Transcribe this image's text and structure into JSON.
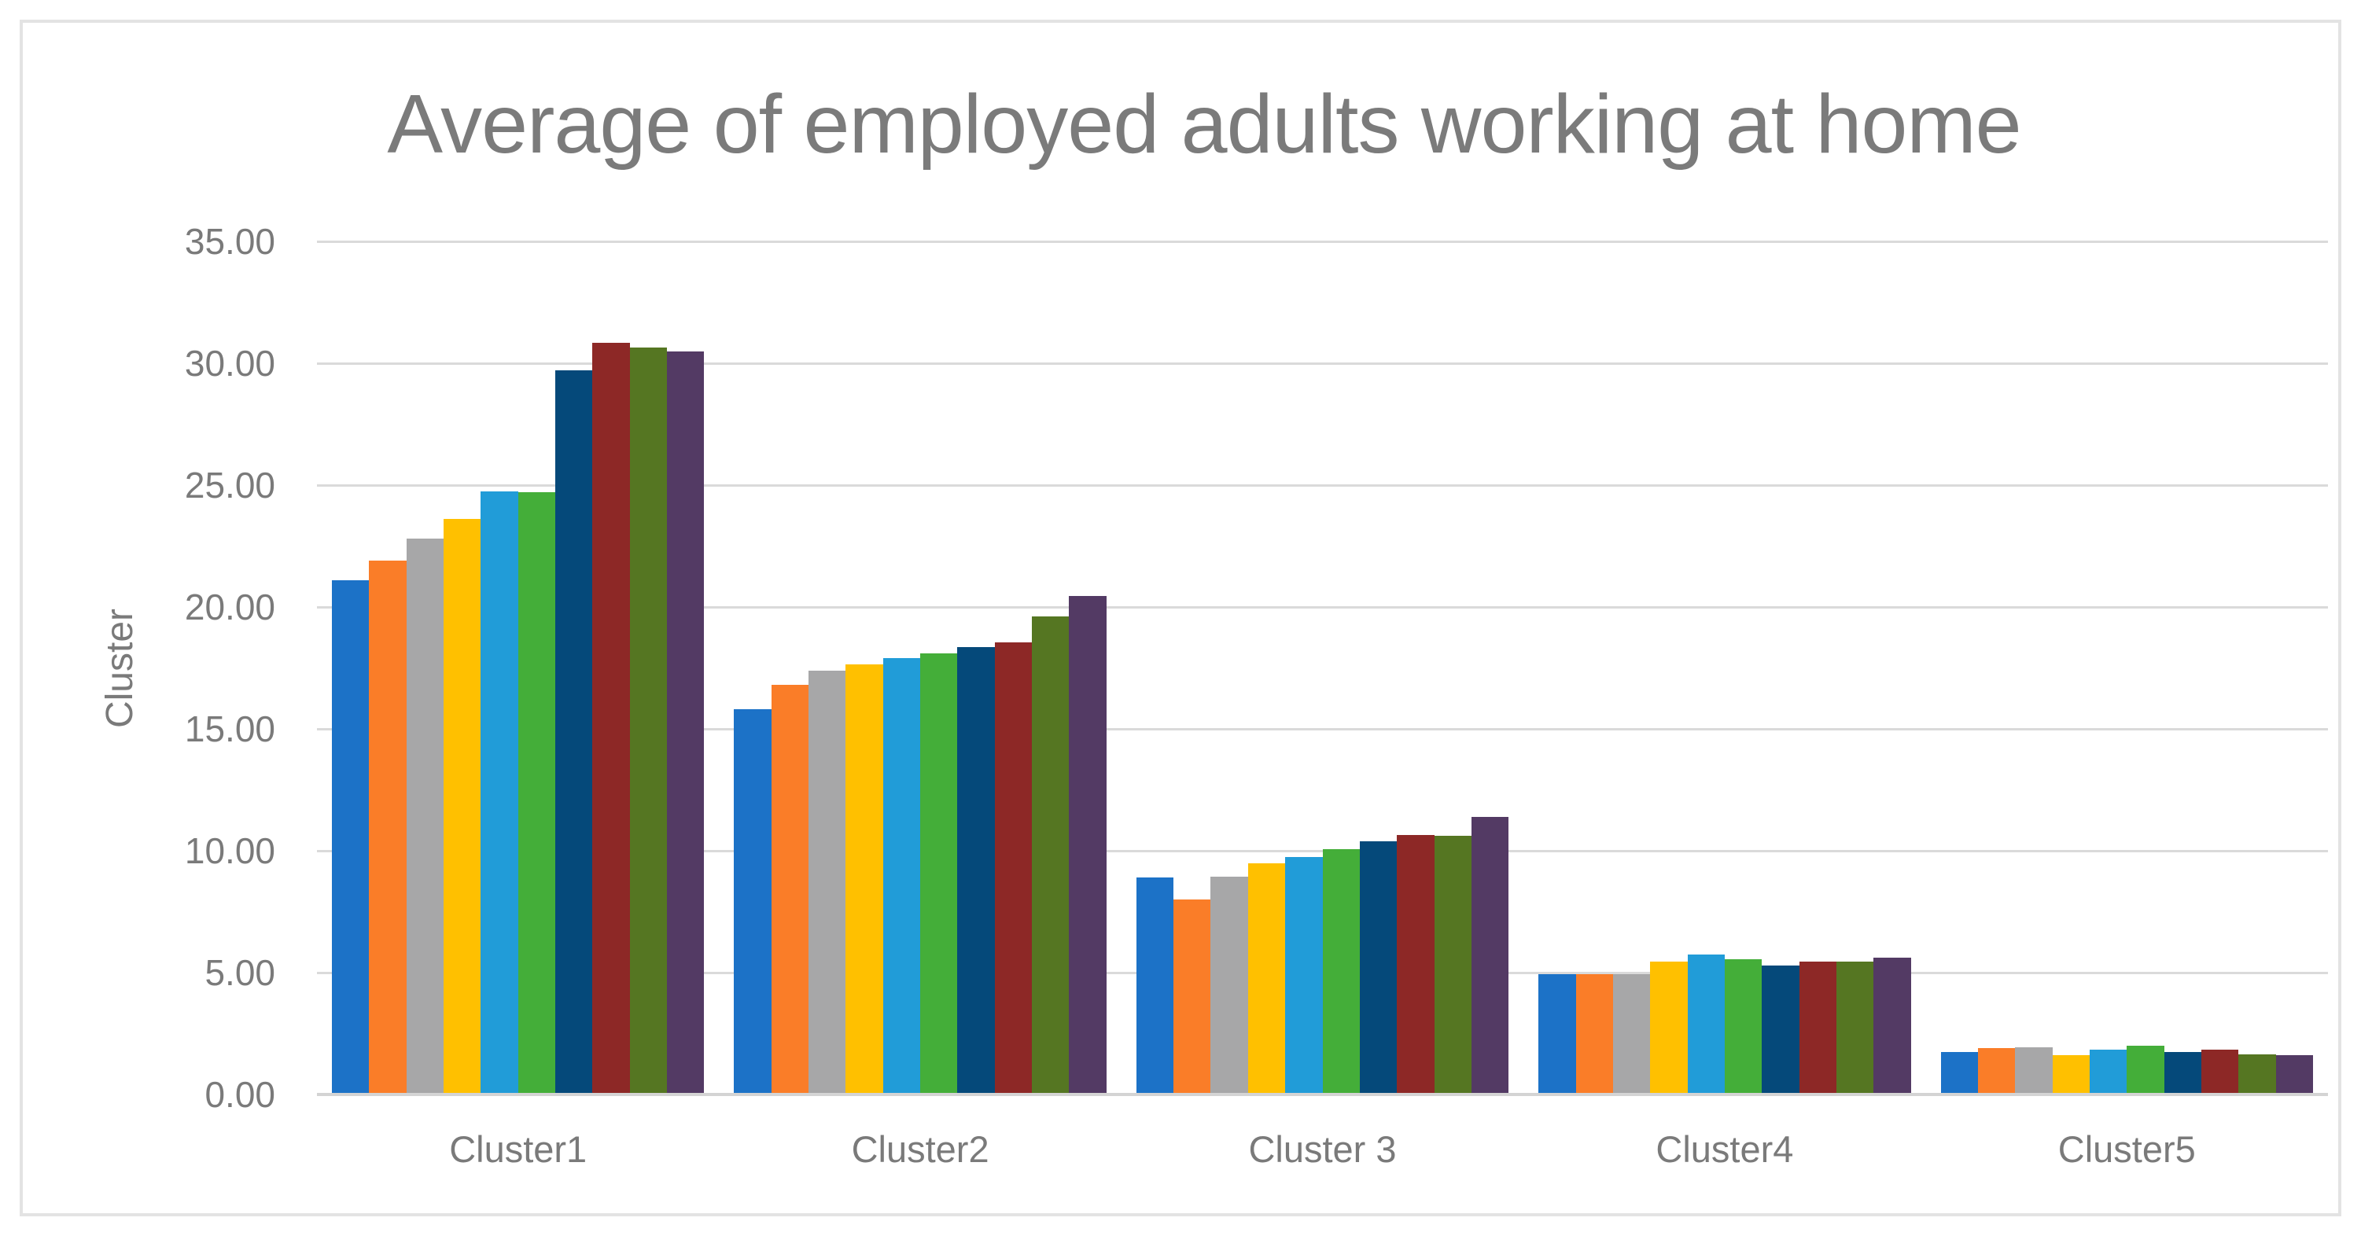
{
  "chart_data": {
    "type": "bar",
    "title": "Average of employed adults working at home",
    "xlabel": "",
    "ylabel": "Cluster",
    "ylim": [
      0,
      35
    ],
    "grid": true,
    "legend": "none",
    "yticks": [
      "0.00",
      "5.00",
      "10.00",
      "15.00",
      "20.00",
      "25.00",
      "30.00",
      "35.00"
    ],
    "categories": [
      "Cluster1",
      "Cluster2",
      "Cluster 3",
      "Cluster4",
      "Cluster5"
    ],
    "series": [
      {
        "color": "#1c72c7",
        "values": [
          21.1,
          15.8,
          8.9,
          4.95,
          1.75
        ]
      },
      {
        "color": "#fa7d28",
        "values": [
          21.9,
          16.8,
          8.0,
          4.95,
          1.9
        ]
      },
      {
        "color": "#a7a7a8",
        "values": [
          22.8,
          17.4,
          8.95,
          4.95,
          1.95
        ]
      },
      {
        "color": "#ffc000",
        "values": [
          23.6,
          17.65,
          9.5,
          5.45,
          1.6
        ]
      },
      {
        "color": "#219cd8",
        "values": [
          24.75,
          17.9,
          9.75,
          5.75,
          1.85
        ]
      },
      {
        "color": "#44ae39",
        "values": [
          24.7,
          18.1,
          10.05,
          5.55,
          2.0
        ]
      },
      {
        "color": "#05497a",
        "values": [
          29.7,
          18.35,
          10.4,
          5.3,
          1.75
        ]
      },
      {
        "color": "#8d2826",
        "values": [
          30.85,
          18.55,
          10.65,
          5.45,
          1.85
        ]
      },
      {
        "color": "#557622",
        "values": [
          30.65,
          19.6,
          10.6,
          5.45,
          1.65
        ]
      },
      {
        "color": "#533a64",
        "values": [
          30.5,
          20.45,
          11.4,
          5.6,
          1.6
        ]
      }
    ]
  },
  "colors": {
    "background": "#ffffff",
    "frame_border": "#e3e3e3",
    "title_text": "#7b7b7b",
    "axis_text": "#7a7a7a",
    "gridline": "#dadada",
    "axis_line": "#d4d4d4"
  }
}
